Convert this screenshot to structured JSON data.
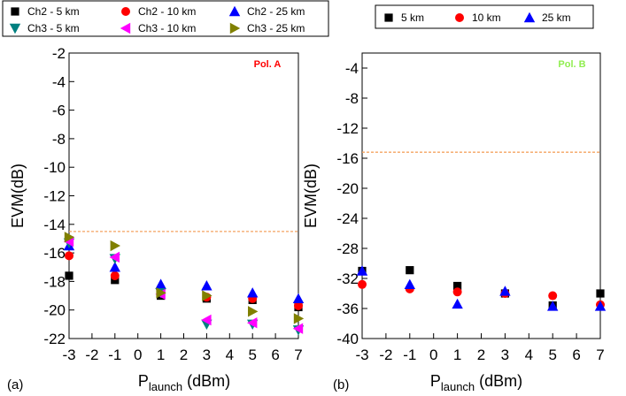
{
  "chart_data": [
    {
      "type": "scatter",
      "panel_label": "(a)",
      "annotation": "Pol. A",
      "annotation_color": "#ff0000",
      "xlabel_main": "P",
      "xlabel_sub": "launch",
      "xlabel_unit": "(dBm)",
      "ylabel": "EVM(dB)",
      "xlim": [
        -3,
        7
      ],
      "ylim": [
        -22,
        -2
      ],
      "xticks": [
        -3,
        -2,
        -1,
        0,
        1,
        2,
        3,
        4,
        5,
        6,
        7
      ],
      "yticks": [
        -22,
        -20,
        -18,
        -16,
        -14,
        -12,
        -10,
        -8,
        -6,
        -4,
        -2
      ],
      "threshold": -14.5,
      "threshold_color": "#f4a460",
      "grid": false,
      "legend_position": "top-outside",
      "legend_columns": 3,
      "series": [
        {
          "name": "Ch2 - 5 km",
          "marker": "square",
          "color": "#000000",
          "x": [
            -3,
            -1,
            1,
            3,
            5,
            7
          ],
          "y": [
            -17.6,
            -17.9,
            -19.0,
            -19.2,
            -19.3,
            -19.8
          ]
        },
        {
          "name": "Ch2 - 10 km",
          "marker": "circle",
          "color": "#ff0000",
          "x": [
            -3,
            -1,
            1,
            3,
            5,
            7
          ],
          "y": [
            -16.2,
            -17.6,
            -18.7,
            -19.1,
            -19.2,
            -19.7
          ]
        },
        {
          "name": "Ch2 - 25 km",
          "marker": "triangle-up",
          "color": "#0000ff",
          "x": [
            -3,
            -1,
            1,
            3,
            5,
            7
          ],
          "y": [
            -15.5,
            -17.0,
            -18.2,
            -18.3,
            -18.8,
            -19.2
          ]
        },
        {
          "name": "Ch3 - 5 km",
          "marker": "triangle-down",
          "color": "#008080",
          "x": [
            -3,
            -1,
            1,
            3,
            5,
            7
          ],
          "y": [
            -15.3,
            -16.4,
            -18.8,
            -21.0,
            -21.0,
            -21.4
          ]
        },
        {
          "name": "Ch3 - 10 km",
          "marker": "triangle-left",
          "color": "#ff00ff",
          "x": [
            -3,
            -1,
            1,
            3,
            5,
            7
          ],
          "y": [
            -15.2,
            -16.3,
            -18.9,
            -20.7,
            -20.9,
            -21.3
          ]
        },
        {
          "name": "Ch3 - 25 km",
          "marker": "triangle-right",
          "color": "#808000",
          "x": [
            -3,
            -1,
            1,
            3,
            5,
            7
          ],
          "y": [
            -14.9,
            -15.5,
            -18.8,
            -19.0,
            -20.1,
            -20.6
          ]
        }
      ]
    },
    {
      "type": "scatter",
      "panel_label": "(b)",
      "annotation": "Pol. B",
      "annotation_color": "#90ee50",
      "xlabel_main": "P",
      "xlabel_sub": "launch",
      "xlabel_unit": "(dBm)",
      "ylabel": "EVM(dB)",
      "xlim": [
        -3,
        7
      ],
      "ylim": [
        -40,
        -2
      ],
      "xticks": [
        -3,
        -2,
        -1,
        0,
        1,
        2,
        3,
        4,
        5,
        6,
        7
      ],
      "yticks": [
        -40,
        -36,
        -32,
        -28,
        -24,
        -20,
        -16,
        -12,
        -8,
        -4
      ],
      "threshold": -15.2,
      "threshold_color": "#f4a460",
      "grid": false,
      "legend_position": "top-outside",
      "legend_columns": 3,
      "series": [
        {
          "name": "5 km",
          "marker": "square",
          "color": "#000000",
          "x": [
            -3,
            -1,
            1,
            3,
            5,
            7
          ],
          "y": [
            -31.0,
            -30.9,
            -33.0,
            -34.0,
            -35.6,
            -34.0
          ]
        },
        {
          "name": "10 km",
          "marker": "circle",
          "color": "#ff0000",
          "x": [
            -3,
            -1,
            1,
            3,
            5,
            7
          ],
          "y": [
            -32.8,
            -33.4,
            -33.8,
            -34.0,
            -34.3,
            -35.5
          ]
        },
        {
          "name": "25 km",
          "marker": "triangle-up",
          "color": "#0000ff",
          "x": [
            -3,
            -1,
            1,
            3,
            5,
            7
          ],
          "y": [
            -31.0,
            -32.8,
            -35.4,
            -33.7,
            -35.7,
            -35.7
          ]
        }
      ]
    }
  ]
}
